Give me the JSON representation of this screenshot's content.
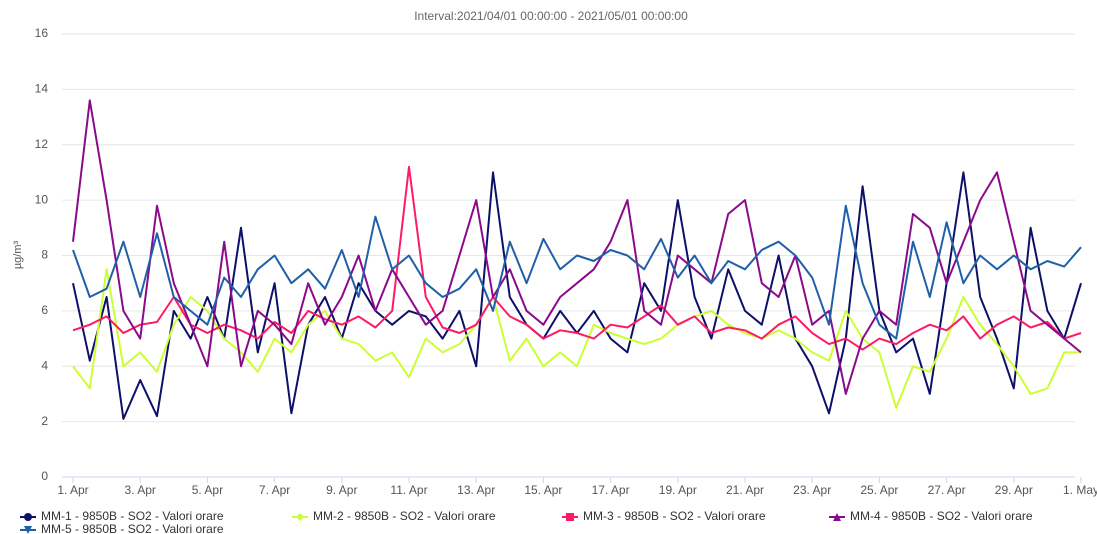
{
  "chart_data": {
    "type": "line",
    "title": "Interval:2021/04/01 00:00:00 - 2021/05/01 00:00:00",
    "y_label": "µg/m³",
    "x": [
      0,
      0.5,
      1,
      1.5,
      2,
      2.5,
      3,
      3.5,
      4,
      4.5,
      5,
      5.5,
      6,
      6.5,
      7,
      7.5,
      8,
      8.5,
      9,
      9.5,
      10,
      10.5,
      11,
      11.5,
      12,
      12.5,
      13,
      13.5,
      14,
      14.5,
      15,
      15.5,
      16,
      16.5,
      17,
      17.5,
      18,
      18.5,
      19,
      19.5,
      20,
      20.5,
      21,
      21.5,
      22,
      22.5,
      23,
      23.5,
      24,
      24.5,
      25,
      25.5,
      26,
      26.5,
      27,
      27.5,
      28,
      28.5,
      29,
      29.5,
      30
    ],
    "xlim": [
      0,
      30
    ],
    "xticks": [
      {
        "value": 0,
        "label": "1. Apr"
      },
      {
        "value": 2,
        "label": "3. Apr"
      },
      {
        "value": 4,
        "label": "5. Apr"
      },
      {
        "value": 6,
        "label": "7. Apr"
      },
      {
        "value": 8,
        "label": "9. Apr"
      },
      {
        "value": 10,
        "label": "11. Apr"
      },
      {
        "value": 12,
        "label": "13. Apr"
      },
      {
        "value": 14,
        "label": "15. Apr"
      },
      {
        "value": 16,
        "label": "17. Apr"
      },
      {
        "value": 18,
        "label": "19. Apr"
      },
      {
        "value": 20,
        "label": "21. Apr"
      },
      {
        "value": 22,
        "label": "23. Apr"
      },
      {
        "value": 24,
        "label": "25. Apr"
      },
      {
        "value": 26,
        "label": "27. Apr"
      },
      {
        "value": 28,
        "label": "29. Apr"
      },
      {
        "value": 30,
        "label": "1. May"
      }
    ],
    "ylim": [
      0,
      16
    ],
    "yticks": [
      0,
      2,
      4,
      6,
      8,
      10,
      12,
      14,
      16
    ],
    "grid": true,
    "legend": "bottom",
    "series": [
      {
        "name": "MM-1 - 9850B - SO2 - Valori orare",
        "color": "#0d1069",
        "marker": "circle",
        "values": [
          7,
          4.2,
          6.5,
          2.1,
          3.5,
          2.2,
          6,
          5,
          6.5,
          5,
          9,
          4.5,
          7,
          2.3,
          5.5,
          6.5,
          5,
          7,
          6,
          5.5,
          6,
          5.8,
          5,
          6,
          4,
          11,
          6.5,
          5.5,
          5,
          6,
          5.2,
          6,
          5,
          4.5,
          7,
          6,
          10,
          6.5,
          5,
          7.5,
          6,
          5.5,
          8,
          5,
          4,
          2.3,
          5,
          10.5,
          6,
          4.5,
          5,
          3,
          7,
          11,
          6.5,
          5,
          3.2,
          9,
          6,
          5,
          7
        ]
      },
      {
        "name": "MM-2 - 9850B - SO2 - Valori orare",
        "color": "#ccff33",
        "marker": "diamond",
        "values": [
          4,
          3.2,
          7.5,
          4,
          4.5,
          3.8,
          5.5,
          6.5,
          6,
          5,
          4.5,
          3.8,
          5,
          4.5,
          5.5,
          6,
          5,
          4.8,
          4.2,
          4.5,
          3.6,
          5,
          4.5,
          4.8,
          5.5,
          6.5,
          4.2,
          5,
          4,
          4.5,
          4,
          5.5,
          5.2,
          5,
          4.8,
          5,
          5.5,
          5.8,
          6,
          5.5,
          5.2,
          5,
          5.3,
          5,
          4.5,
          4.2,
          6,
          5,
          4.5,
          2.5,
          4,
          3.8,
          5,
          6.5,
          5.5,
          4.8,
          4,
          3,
          3.2,
          4.5,
          4.5
        ]
      },
      {
        "name": "MM-3 - 9850B - SO2 - Valori orare",
        "color": "#ff1a66",
        "marker": "square",
        "values": [
          5.3,
          5.5,
          5.8,
          5.2,
          5.5,
          5.6,
          6.5,
          5.5,
          5.2,
          5.5,
          5.3,
          5.0,
          5.6,
          5.2,
          6.0,
          5.7,
          5.5,
          5.8,
          5.4,
          6.0,
          11.2,
          6.5,
          5.4,
          5.2,
          5.5,
          6.5,
          5.8,
          5.5,
          5.0,
          5.3,
          5.2,
          5.0,
          5.5,
          5.4,
          5.8,
          6.2,
          5.5,
          5.8,
          5.2,
          5.4,
          5.3,
          5.0,
          5.5,
          5.8,
          5.2,
          4.8,
          5.0,
          4.6,
          5.0,
          4.8,
          5.2,
          5.5,
          5.3,
          5.8,
          5.0,
          5.5,
          5.8,
          5.4,
          5.6,
          5.0,
          5.2
        ]
      },
      {
        "name": "MM-4 - 9850B - SO2 - Valori orare",
        "color": "#8b0a8b",
        "marker": "triangle",
        "values": [
          8.5,
          13.6,
          10,
          6,
          5,
          9.8,
          7,
          5.5,
          4,
          8.5,
          4,
          6,
          5.5,
          4.8,
          7,
          5.5,
          6.5,
          8,
          6,
          7.5,
          6.5,
          5.5,
          6,
          8,
          10,
          6.5,
          7.5,
          6,
          5.5,
          6.5,
          7,
          7.5,
          8.5,
          10,
          6,
          5.5,
          8,
          7.5,
          7,
          9.5,
          10,
          7,
          6.5,
          8,
          5.5,
          6,
          3,
          5,
          6,
          5.5,
          9.5,
          9,
          7,
          8.5,
          10,
          11,
          8.5,
          6,
          5.5,
          5,
          4.5
        ]
      },
      {
        "name": "MM-5 - 9850B - SO2 - Valori orare",
        "color": "#2060a8",
        "marker": "triangle-down",
        "values": [
          8.2,
          6.5,
          6.8,
          8.5,
          6.5,
          8.8,
          6.5,
          6,
          5.5,
          7.2,
          6.5,
          7.5,
          8,
          7,
          7.5,
          6.8,
          8.2,
          6.5,
          9.4,
          7.5,
          8,
          7,
          6.5,
          6.8,
          7.5,
          6,
          8.5,
          7,
          8.6,
          7.5,
          8,
          7.8,
          8.2,
          8,
          7.5,
          8.6,
          7.2,
          8,
          7,
          7.8,
          7.5,
          8.2,
          8.5,
          8,
          7.2,
          5.5,
          9.8,
          7,
          5.5,
          5,
          8.5,
          6.5,
          9.2,
          7,
          8,
          7.5,
          8,
          7.5,
          7.8,
          7.6,
          8.3
        ]
      }
    ]
  }
}
